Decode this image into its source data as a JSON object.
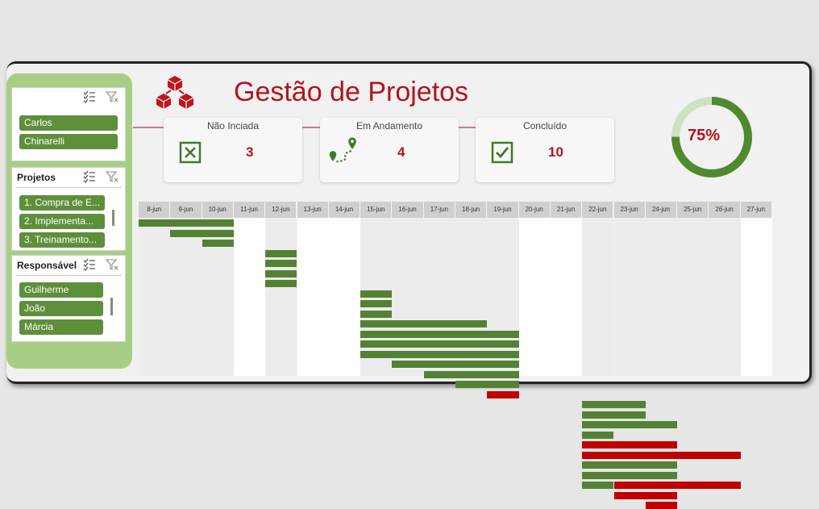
{
  "header": {
    "title": "Gestão de Projetos"
  },
  "colors": {
    "accent_red": "#b3141c",
    "green_bar": "#548235",
    "red_bar": "#c00000",
    "sidebar_green": "#a6cf85"
  },
  "slicers": [
    {
      "title": "",
      "items": [
        "Carlos",
        "Chinarelli"
      ]
    },
    {
      "title": "Projetos",
      "items": [
        "1. Compra de E...",
        "2. Implementa...",
        "3. Treinamento..."
      ]
    },
    {
      "title": "Responsável",
      "items": [
        "Guilherme",
        "João",
        "Márcia"
      ]
    }
  ],
  "cards": [
    {
      "label": "Não Inciada",
      "value": "3",
      "icon": "x-box-icon"
    },
    {
      "label": "Em Andamento",
      "value": "4",
      "icon": "route-pin-icon"
    },
    {
      "label": "Concluído",
      "value": "10",
      "icon": "check-box-icon"
    }
  ],
  "progress": {
    "label": "75%",
    "value": 0.75
  },
  "gantt": {
    "dates": [
      "8-jun",
      "9-jun",
      "10-jun",
      "11-jun",
      "12-jun",
      "13-jun",
      "14-jun",
      "15-jun",
      "16-jun",
      "17-jun",
      "18-jun",
      "19-jun",
      "20-jun",
      "21-jun",
      "22-jun",
      "23-jun",
      "24-jun",
      "25-jun",
      "26-jun",
      "27-jun"
    ],
    "weekend_columns": [
      3,
      5,
      6,
      12,
      13,
      19
    ],
    "tasks": [
      {
        "start": "8-jun",
        "end": "10-jun",
        "status": "green"
      },
      {
        "start": "9-jun",
        "end": "10-jun",
        "status": "green"
      },
      {
        "start": "10-jun",
        "end": "10-jun",
        "status": "green"
      },
      {
        "start": "12-jun",
        "end": "12-jun",
        "status": "green"
      },
      {
        "start": "12-jun",
        "end": "12-jun",
        "status": "green"
      },
      {
        "start": "12-jun",
        "end": "12-jun",
        "status": "green"
      },
      {
        "start": "12-jun",
        "end": "12-jun",
        "status": "green"
      },
      {
        "start": "15-jun",
        "end": "15-jun",
        "status": "green"
      },
      {
        "start": "15-jun",
        "end": "15-jun",
        "status": "green"
      },
      {
        "start": "15-jun",
        "end": "15-jun",
        "status": "green"
      },
      {
        "start": "15-jun",
        "end": "18-jun",
        "status": "green"
      },
      {
        "start": "15-jun",
        "end": "19-jun",
        "status": "green"
      },
      {
        "start": "15-jun",
        "end": "19-jun",
        "status": "green"
      },
      {
        "start": "15-jun",
        "end": "19-jun",
        "status": "green"
      },
      {
        "start": "16-jun",
        "end": "19-jun",
        "status": "green"
      },
      {
        "start": "17-jun",
        "end": "19-jun",
        "status": "green"
      },
      {
        "start": "18-jun",
        "end": "19-jun",
        "status": "green"
      },
      {
        "start": "19-jun",
        "end": "19-jun",
        "status": "red"
      },
      {
        "start": "22-jun",
        "end": "23-jun",
        "status": "green"
      },
      {
        "start": "22-jun",
        "end": "23-jun",
        "status": "green"
      },
      {
        "start": "22-jun",
        "end": "24-jun",
        "status": "green"
      },
      {
        "start": "22-jun",
        "end": "22-jun",
        "status": "green"
      },
      {
        "start": "22-jun",
        "end": "24-jun",
        "status": "red"
      },
      {
        "start": "22-jun",
        "end": "26-jun",
        "status": "red"
      },
      {
        "start": "22-jun",
        "end": "24-jun",
        "status": "green"
      },
      {
        "start": "22-jun",
        "end": "24-jun",
        "status": "green"
      },
      {
        "start": "22-jun",
        "end": "26-jun",
        "status": "mixed"
      },
      {
        "start": "23-jun",
        "end": "24-jun",
        "status": "red"
      },
      {
        "start": "24-jun",
        "end": "24-jun",
        "status": "red"
      }
    ]
  }
}
